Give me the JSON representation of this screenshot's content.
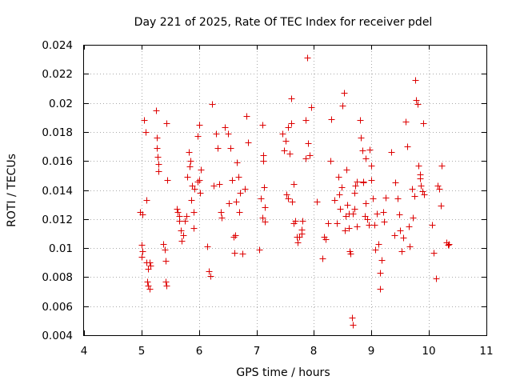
{
  "chart_data": {
    "type": "scatter",
    "title": "Day 221 of 2025, Rate Of TEC Index for receiver pdel",
    "xlabel": "GPS time / hours",
    "ylabel": "ROTI / TECUs",
    "xlim": [
      4,
      11
    ],
    "ylim": [
      0.004,
      0.024
    ],
    "xticks": [
      4,
      5,
      6,
      7,
      8,
      9,
      10,
      11
    ],
    "yticks": [
      0.004,
      0.006,
      0.008,
      0.01,
      0.012,
      0.014,
      0.016,
      0.018,
      0.02,
      0.022,
      0.024
    ],
    "xtick_labels": [
      "4",
      "5",
      "6",
      "7",
      "8",
      "9",
      "10",
      "11"
    ],
    "ytick_labels": [
      "0.004",
      "0.006",
      "0.008",
      "0.01",
      "0.012",
      "0.014",
      "0.016",
      "0.018",
      "0.02",
      "0.022",
      "0.024"
    ],
    "grid": true,
    "marker": "+",
    "marker_color": "#dd0000",
    "series": [
      {
        "name": "ROTI",
        "x": [
          4.98,
          5.0,
          5.0,
          5.01,
          5.02,
          5.05,
          5.07,
          5.08,
          5.09,
          5.1,
          5.12,
          5.12,
          5.14,
          5.14,
          5.15,
          5.25,
          5.26,
          5.27,
          5.28,
          5.3,
          5.3,
          5.38,
          5.4,
          5.42,
          5.42,
          5.43,
          5.44,
          5.45,
          5.62,
          5.63,
          5.65,
          5.66,
          5.68,
          5.7,
          5.72,
          5.75,
          5.78,
          5.8,
          5.82,
          5.84,
          5.85,
          5.86,
          5.88,
          5.9,
          5.9,
          5.92,
          5.97,
          5.98,
          6.0,
          6.0,
          6.02,
          6.03,
          6.15,
          6.17,
          6.2,
          6.22,
          6.25,
          6.3,
          6.32,
          6.35,
          6.38,
          6.4,
          6.45,
          6.5,
          6.52,
          6.55,
          6.58,
          6.6,
          6.62,
          6.63,
          6.65,
          6.66,
          6.68,
          6.7,
          6.72,
          6.75,
          6.8,
          6.82,
          6.85,
          7.05,
          7.08,
          7.1,
          7.1,
          7.12,
          7.12,
          7.13,
          7.15,
          7.15,
          7.45,
          7.48,
          7.5,
          7.52,
          7.55,
          7.55,
          7.58,
          7.6,
          7.6,
          7.62,
          7.65,
          7.65,
          7.68,
          7.7,
          7.72,
          7.75,
          7.78,
          7.78,
          7.8,
          7.85,
          7.86,
          7.88,
          7.9,
          7.92,
          7.95,
          8.05,
          8.15,
          8.18,
          8.2,
          8.25,
          8.28,
          8.3,
          8.35,
          8.4,
          8.42,
          8.44,
          8.46,
          8.48,
          8.5,
          8.52,
          8.54,
          8.55,
          8.56,
          8.58,
          8.6,
          8.6,
          8.62,
          8.64,
          8.66,
          8.67,
          8.68,
          8.7,
          8.7,
          8.72,
          8.74,
          8.75,
          8.8,
          8.82,
          8.84,
          8.85,
          8.86,
          8.88,
          8.9,
          8.9,
          8.92,
          8.95,
          8.97,
          9.0,
          9.0,
          9.02,
          9.05,
          9.07,
          9.1,
          9.12,
          9.15,
          9.15,
          9.17,
          9.2,
          9.22,
          9.25,
          9.35,
          9.4,
          9.42,
          9.45,
          9.48,
          9.5,
          9.52,
          9.55,
          9.6,
          9.62,
          9.65,
          9.67,
          9.7,
          9.72,
          9.75,
          9.76,
          9.78,
          9.8,
          9.82,
          9.84,
          9.85,
          9.86,
          9.88,
          9.9,
          9.92,
          10.05,
          10.08,
          10.12,
          10.15,
          10.18,
          10.2,
          10.22,
          10.3,
          10.33,
          10.35
        ],
        "y": [
          0.0125,
          0.0102,
          0.0094,
          0.0098,
          0.0123,
          0.0188,
          0.018,
          0.0133,
          0.009,
          0.0077,
          0.0086,
          0.0074,
          0.0072,
          0.009,
          0.0088,
          0.0195,
          0.0176,
          0.0169,
          0.0163,
          0.0158,
          0.0153,
          0.0103,
          0.0099,
          0.0077,
          0.0091,
          0.0074,
          0.0186,
          0.0147,
          0.0127,
          0.0125,
          0.0122,
          0.0119,
          0.0112,
          0.0105,
          0.0109,
          0.0119,
          0.0122,
          0.0149,
          0.0166,
          0.0156,
          0.016,
          0.0133,
          0.0143,
          0.0114,
          0.0125,
          0.0141,
          0.0146,
          0.0177,
          0.0185,
          0.0147,
          0.0138,
          0.0154,
          0.0101,
          0.0084,
          0.0081,
          0.0199,
          0.0143,
          0.0179,
          0.0169,
          0.0144,
          0.0125,
          0.0121,
          0.0183,
          0.0179,
          0.0131,
          0.0169,
          0.0147,
          0.0108,
          0.0097,
          0.0109,
          0.0132,
          0.0159,
          0.0149,
          0.0125,
          0.0138,
          0.0096,
          0.0141,
          0.0191,
          0.0173,
          0.0099,
          0.0134,
          0.0121,
          0.0185,
          0.016,
          0.0164,
          0.0142,
          0.0118,
          0.0128,
          0.0179,
          0.0167,
          0.0174,
          0.0137,
          0.0134,
          0.0183,
          0.0165,
          0.0203,
          0.0186,
          0.0132,
          0.0117,
          0.0144,
          0.0119,
          0.0108,
          0.0104,
          0.0108,
          0.0113,
          0.011,
          0.0119,
          0.0162,
          0.0188,
          0.0231,
          0.0172,
          0.0164,
          0.0197,
          0.0132,
          0.0093,
          0.0108,
          0.0106,
          0.0117,
          0.016,
          0.0189,
          0.0133,
          0.0117,
          0.0149,
          0.0137,
          0.0127,
          0.0142,
          0.0198,
          0.0207,
          0.0112,
          0.0122,
          0.0154,
          0.013,
          0.0114,
          0.0124,
          0.0098,
          0.0096,
          0.0052,
          0.0047,
          0.0124,
          0.0138,
          0.0127,
          0.0143,
          0.0115,
          0.0146,
          0.0188,
          0.0176,
          0.0167,
          0.0146,
          0.0145,
          0.0122,
          0.0162,
          0.0131,
          0.012,
          0.0116,
          0.0168,
          0.0157,
          0.0147,
          0.0134,
          0.0116,
          0.0099,
          0.0124,
          0.0103,
          0.0083,
          0.0072,
          0.0092,
          0.0125,
          0.0118,
          0.0135,
          0.0166,
          0.0109,
          0.0145,
          0.0134,
          0.0123,
          0.0112,
          0.0098,
          0.0107,
          0.0187,
          0.017,
          0.0115,
          0.0101,
          0.0141,
          0.0121,
          0.0136,
          0.0216,
          0.0202,
          0.0199,
          0.0157,
          0.0151,
          0.0148,
          0.0143,
          0.0139,
          0.0186,
          0.0137,
          0.0116,
          0.0097,
          0.0079,
          0.0143,
          0.0141,
          0.0129,
          0.0157,
          0.0104,
          0.0102,
          0.0103
        ]
      }
    ]
  }
}
